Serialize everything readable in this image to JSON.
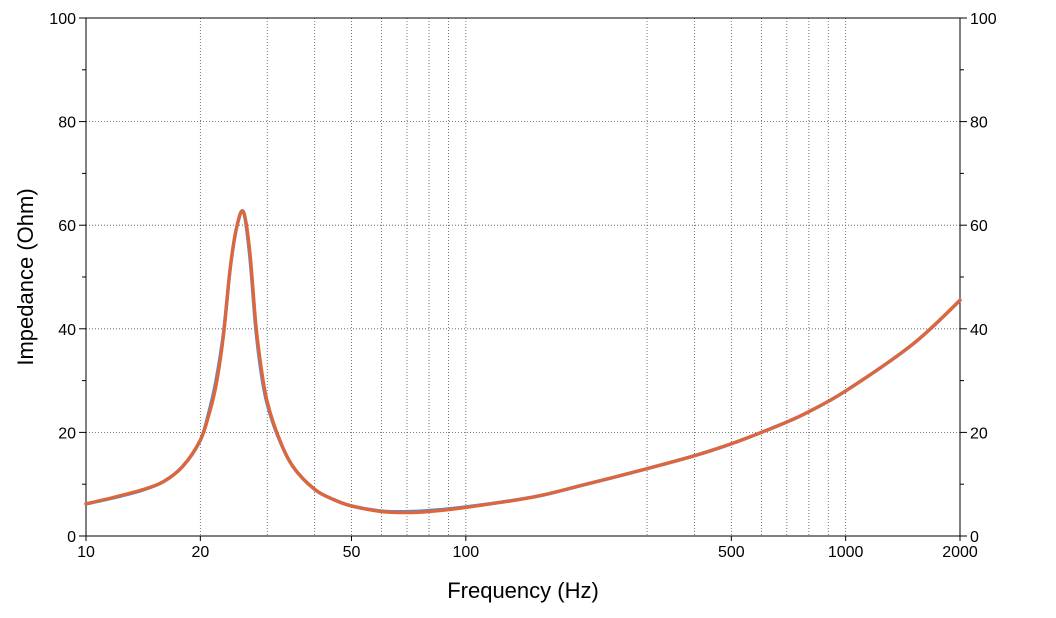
{
  "chart_data": {
    "type": "line",
    "title": "",
    "xlabel": "Frequency (Hz)",
    "ylabel": "Impedance (Ohm)",
    "x_scale": "log",
    "xlim": [
      10,
      2000
    ],
    "ylim": [
      0,
      100
    ],
    "x_tick_labels": [
      {
        "value": 10,
        "label": "10"
      },
      {
        "value": 20,
        "label": "20"
      },
      {
        "value": 50,
        "label": "50"
      },
      {
        "value": 100,
        "label": "100"
      },
      {
        "value": 500,
        "label": "500"
      },
      {
        "value": 1000,
        "label": "1000"
      },
      {
        "value": 2000,
        "label": "2000"
      }
    ],
    "x_gridlines": [
      20,
      30,
      40,
      50,
      60,
      70,
      80,
      90,
      100,
      300,
      400,
      500,
      600,
      700,
      800,
      900,
      1000
    ],
    "y_ticks_major": [
      0,
      20,
      40,
      60,
      80,
      100
    ],
    "y_tick_labels": [
      "0",
      "20",
      "40",
      "60",
      "80",
      "100"
    ],
    "y_ticks_minor": [
      10,
      30,
      50,
      70,
      90
    ],
    "grid": true,
    "right_axis": true,
    "series": [
      {
        "color": "#5b8bc9",
        "x": [
          10,
          12,
          14,
          16,
          18,
          20,
          21,
          22,
          23,
          24,
          25,
          26,
          27,
          28,
          29,
          30,
          32,
          35,
          40,
          45,
          50,
          60,
          70,
          80,
          100,
          150,
          200,
          300,
          400,
          500,
          600,
          700,
          800,
          1000,
          1500,
          2000
        ],
        "y": [
          6.2,
          7.5,
          8.8,
          10.5,
          13.5,
          18.5,
          23.5,
          30,
          39,
          52,
          60,
          62.5,
          54,
          40,
          31,
          25.5,
          19.3,
          13.5,
          9,
          7,
          5.8,
          4.8,
          4.7,
          4.9,
          5.6,
          7.5,
          9.7,
          13,
          15.5,
          17.8,
          20,
          22,
          24,
          28,
          37,
          45.5
        ]
      },
      {
        "color": "#e0663a",
        "x": [
          10,
          12,
          14,
          16,
          18,
          20,
          21,
          22,
          23,
          24,
          25,
          26,
          27,
          28,
          29,
          30,
          32,
          35,
          40,
          45,
          50,
          60,
          70,
          80,
          100,
          150,
          200,
          300,
          400,
          500,
          600,
          700,
          800,
          1000,
          1500,
          2000
        ],
        "y": [
          6.2,
          7.6,
          8.9,
          10.5,
          13.5,
          18.5,
          23,
          29,
          38.5,
          52,
          60,
          62.5,
          55,
          41,
          32,
          26,
          19.5,
          13.5,
          9,
          7,
          5.8,
          4.7,
          4.5,
          4.7,
          5.5,
          7.5,
          9.7,
          13,
          15.5,
          17.8,
          20,
          22,
          24,
          28,
          37,
          45.5
        ]
      }
    ]
  }
}
